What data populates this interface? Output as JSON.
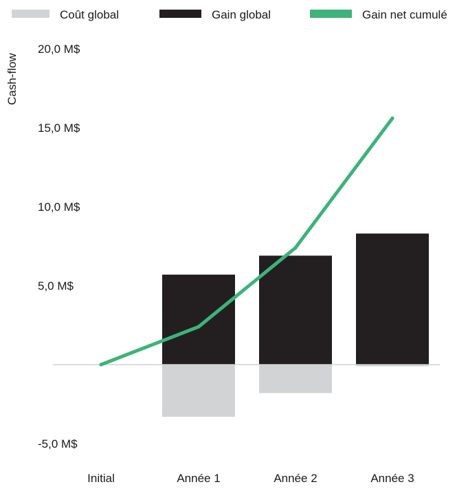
{
  "chart_data": {
    "type": "bar",
    "categories": [
      "Initial",
      "Année 1",
      "Année 2",
      "Année 3"
    ],
    "series": [
      {
        "name": "Coût global",
        "kind": "bar",
        "color": "#d1d3d4",
        "values": [
          0,
          -3.3,
          -1.8,
          -0.1
        ]
      },
      {
        "name": "Gain global",
        "kind": "bar",
        "color": "#231f20",
        "values": [
          0,
          5.7,
          6.9,
          8.3
        ]
      },
      {
        "name": "Gain net cumulé",
        "kind": "line",
        "color": "#3db37a",
        "values": [
          0,
          2.4,
          7.4,
          15.6
        ]
      }
    ],
    "title": "",
    "xlabel": "",
    "ylabel": "Cash-flow",
    "ylim": [
      -5,
      20
    ],
    "yticks": [
      -5,
      0,
      5,
      10,
      15,
      20
    ],
    "ytick_labels": [
      "-5,0 M$",
      "",
      "5,0 M$",
      "10,0 M$",
      "15,0 M$",
      "20,0 M$"
    ],
    "legend_position": "top",
    "grid": false
  }
}
